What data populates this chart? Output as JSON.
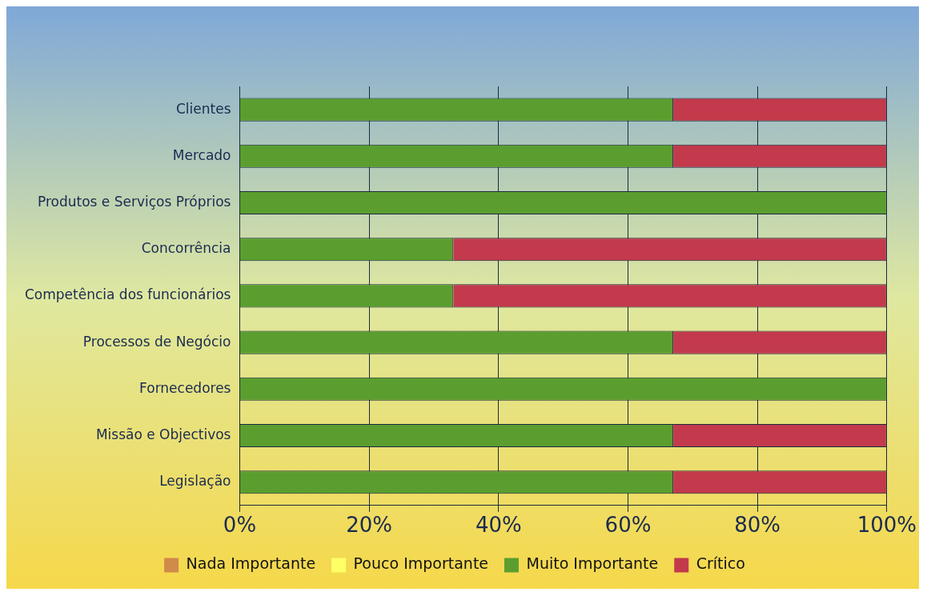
{
  "chart_data": {
    "type": "bar",
    "orientation": "horizontal",
    "stacked": true,
    "categories": [
      "Clientes",
      "Mercado",
      "Produtos e Serviços Próprios",
      "Concorrência",
      "Competência dos funcionários",
      "Processos de Negócio",
      "Fornecedores",
      "Missão e Objectivos",
      "Legislação"
    ],
    "series": [
      {
        "name": "Nada Importante",
        "color": "#d08a4a",
        "values": [
          0,
          0,
          0,
          0,
          0,
          0,
          0,
          0,
          0
        ]
      },
      {
        "name": "Pouco Importante",
        "color": "#ffff66",
        "values": [
          0,
          0,
          0,
          0,
          0,
          0,
          0,
          0,
          0
        ]
      },
      {
        "name": "Muito Importante",
        "color": "#5b9e2f",
        "values": [
          67,
          67,
          100,
          33,
          33,
          67,
          100,
          67,
          67
        ]
      },
      {
        "name": "Crítico",
        "color": "#c23a4c",
        "values": [
          33,
          33,
          0,
          67,
          67,
          33,
          0,
          33,
          33
        ]
      }
    ],
    "xlim": [
      0,
      100
    ],
    "xticks": [
      {
        "value": 0,
        "label": "0%"
      },
      {
        "value": 20,
        "label": "20%"
      },
      {
        "value": 40,
        "label": "40%"
      },
      {
        "value": 60,
        "label": "60%"
      },
      {
        "value": 80,
        "label": "80%"
      },
      {
        "value": 100,
        "label": "100%"
      }
    ],
    "grid": "x",
    "legend": "bottom"
  }
}
